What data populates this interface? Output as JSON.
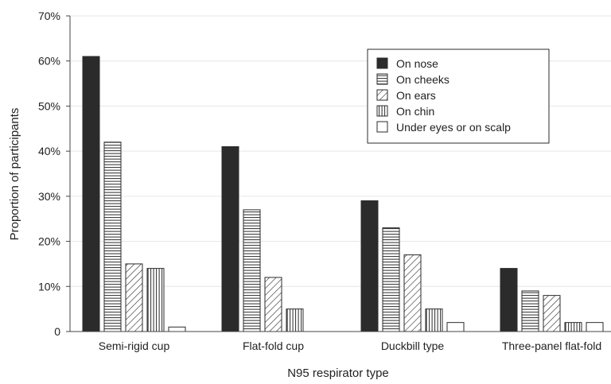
{
  "chart_data": {
    "type": "bar",
    "title": "",
    "xlabel": "N95 respirator type",
    "ylabel": "Proportion of participants",
    "categories": [
      "Semi-rigid cup",
      "Flat-fold cup",
      "Duckbill type",
      "Three-panel flat-fold"
    ],
    "ylim": [
      0,
      70
    ],
    "yticks": [
      "0",
      "10%",
      "20%",
      "30%",
      "40%",
      "50%",
      "60%",
      "70%"
    ],
    "ytick_values": [
      0,
      10,
      20,
      30,
      40,
      50,
      60,
      70
    ],
    "grid": "horizontal",
    "legend_position": "top-right",
    "series": [
      {
        "name": "On nose",
        "values": [
          61,
          41,
          29,
          14
        ],
        "pattern": "solid",
        "color": "#2b2b2b"
      },
      {
        "name": "On cheeks",
        "values": [
          42,
          27,
          23,
          9
        ],
        "pattern": "horizontal",
        "color": "#2b2b2b"
      },
      {
        "name": "On ears",
        "values": [
          15,
          12,
          17,
          8
        ],
        "pattern": "diagonal",
        "color": "#2b2b2b"
      },
      {
        "name": "On chin",
        "values": [
          14,
          5,
          5,
          2
        ],
        "pattern": "vertical",
        "color": "#2b2b2b"
      },
      {
        "name": "Under eyes or on scalp",
        "values": [
          1,
          0,
          2,
          2
        ],
        "pattern": "empty",
        "color": "#2b2b2b"
      }
    ]
  }
}
